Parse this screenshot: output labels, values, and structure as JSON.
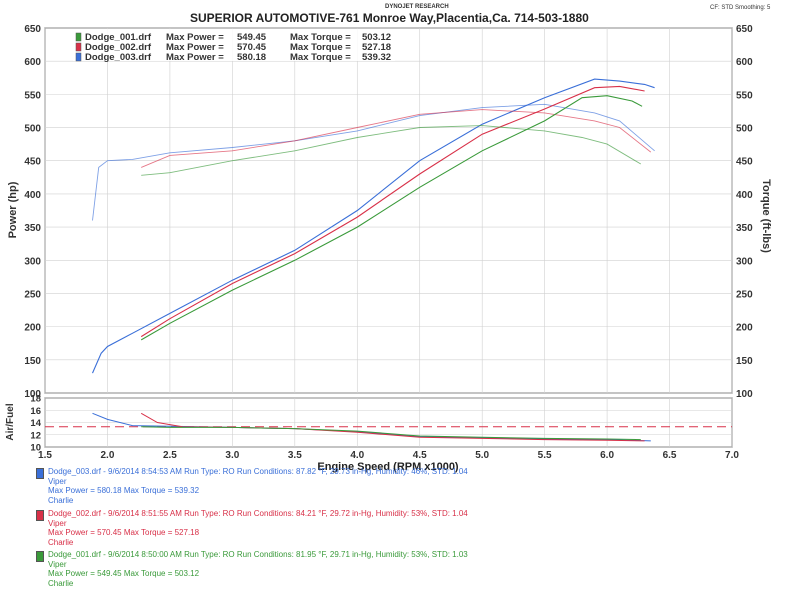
{
  "header": {
    "brand": "DYNOJET RESEARCH",
    "title": "SUPERIOR AUTOMOTIVE-761 Monroe Way,Placentia,Ca. 714-503-1880",
    "settings": "CF: STD  Smoothing: 5"
  },
  "legend": [
    {
      "file": "Dodge_001.drf",
      "power_label": "Max Power =",
      "power": "549.45",
      "torque_label": "Max Torque =",
      "torque": "503.12",
      "color": "#3a9a3a"
    },
    {
      "file": "Dodge_002.drf",
      "power_label": "Max Power =",
      "power": "570.45",
      "torque_label": "Max Torque =",
      "torque": "527.18",
      "color": "#d83048"
    },
    {
      "file": "Dodge_003.drf",
      "power_label": "Max Power =",
      "power": "580.18",
      "torque_label": "Max Torque =",
      "torque": "539.32",
      "color": "#3a6fd8"
    }
  ],
  "runs": [
    {
      "line1": "Dodge_003.drf - 9/6/2014 8:54:53 AM  Run Type: RO  Run Conditions: 87.82 °F, 29.73 in-Hg,  Humidity:  46%, STD: 1.04",
      "line2": "Viper",
      "line3": "Max Power = 580.18  Max Torque = 539.32",
      "line4": "Charlie",
      "color": "#3a6fd8"
    },
    {
      "line1": "Dodge_002.drf - 9/6/2014 8:51:55 AM  Run Type: RO  Run Conditions: 84.21 °F, 29.72 in-Hg,  Humidity:  53%, STD: 1.04",
      "line2": "Viper",
      "line3": "Max Power = 570.45  Max Torque = 527.18",
      "line4": "Charlie",
      "color": "#d83048"
    },
    {
      "line1": "Dodge_001.drf - 9/6/2014 8:50:00 AM  Run Type: RO  Run Conditions: 81.95 °F, 29.71 in-Hg,  Humidity:  53%, STD: 1.03",
      "line2": "Viper",
      "line3": "Max Power = 549.45  Max Torque = 503.12",
      "line4": "Charlie",
      "color": "#3a9a3a"
    }
  ],
  "chart_data": {
    "type": "line",
    "xlabel": "Engine Speed (RPM x1000)",
    "ylabel_left": "Power (hp)",
    "ylabel_right": "Torque (ft-lbs)",
    "ylabel_af": "Air/Fuel",
    "xlim": [
      1.5,
      7.0
    ],
    "xticks": [
      "1.5",
      "2.0",
      "2.5",
      "3.0",
      "3.5",
      "4.0",
      "4.5",
      "5.0",
      "5.5",
      "6.0",
      "6.5",
      "7.0"
    ],
    "power_ylim": [
      100,
      650
    ],
    "power_ticks": [
      "100",
      "150",
      "200",
      "250",
      "300",
      "350",
      "400",
      "450",
      "500",
      "550",
      "600",
      "650"
    ],
    "torque_ylim": [
      100,
      650
    ],
    "torque_ticks": [
      "100",
      "150",
      "200",
      "250",
      "300",
      "350",
      "400",
      "450",
      "500",
      "550",
      "600",
      "650"
    ],
    "af_ylim": [
      10,
      18
    ],
    "af_ticks": [
      "10",
      "12",
      "14",
      "16",
      "18"
    ],
    "af_reference": 13.3,
    "series": [
      {
        "name": "Dodge_003.drf",
        "color": "#3a6fd8",
        "power": [
          [
            1.88,
            130
          ],
          [
            1.95,
            160
          ],
          [
            2.0,
            170
          ],
          [
            2.2,
            190
          ],
          [
            2.5,
            220
          ],
          [
            3.0,
            270
          ],
          [
            3.5,
            315
          ],
          [
            4.0,
            375
          ],
          [
            4.5,
            450
          ],
          [
            5.0,
            505
          ],
          [
            5.5,
            545
          ],
          [
            5.9,
            573
          ],
          [
            6.1,
            570
          ],
          [
            6.3,
            565
          ],
          [
            6.38,
            560
          ]
        ],
        "torque": [
          [
            1.88,
            360
          ],
          [
            1.93,
            440
          ],
          [
            2.0,
            450
          ],
          [
            2.2,
            452
          ],
          [
            2.5,
            462
          ],
          [
            3.0,
            470
          ],
          [
            3.5,
            480
          ],
          [
            4.0,
            495
          ],
          [
            4.5,
            518
          ],
          [
            5.0,
            530
          ],
          [
            5.5,
            535
          ],
          [
            5.9,
            522
          ],
          [
            6.1,
            510
          ],
          [
            6.38,
            465
          ]
        ],
        "af": [
          [
            1.88,
            15.5
          ],
          [
            2.0,
            14.5
          ],
          [
            2.2,
            13.5
          ],
          [
            2.5,
            13.4
          ],
          [
            3.0,
            13.2
          ],
          [
            3.5,
            13.0
          ],
          [
            4.0,
            12.5
          ],
          [
            4.5,
            11.7
          ],
          [
            5.0,
            11.5
          ],
          [
            5.5,
            11.3
          ],
          [
            6.0,
            11.2
          ],
          [
            6.35,
            11.0
          ]
        ]
      },
      {
        "name": "Dodge_002.drf",
        "color": "#d83048",
        "power": [
          [
            2.27,
            185
          ],
          [
            2.5,
            212
          ],
          [
            3.0,
            265
          ],
          [
            3.5,
            310
          ],
          [
            4.0,
            365
          ],
          [
            4.5,
            430
          ],
          [
            5.0,
            490
          ],
          [
            5.5,
            528
          ],
          [
            5.9,
            560
          ],
          [
            6.1,
            562
          ],
          [
            6.3,
            555
          ]
        ],
        "torque": [
          [
            2.27,
            440
          ],
          [
            2.5,
            458
          ],
          [
            3.0,
            465
          ],
          [
            3.5,
            480
          ],
          [
            4.0,
            500
          ],
          [
            4.5,
            520
          ],
          [
            5.0,
            527
          ],
          [
            5.5,
            522
          ],
          [
            5.9,
            510
          ],
          [
            6.1,
            500
          ],
          [
            6.35,
            463
          ]
        ],
        "af": [
          [
            2.27,
            15.5
          ],
          [
            2.4,
            14.0
          ],
          [
            2.6,
            13.3
          ],
          [
            3.0,
            13.2
          ],
          [
            3.5,
            13.0
          ],
          [
            4.0,
            12.4
          ],
          [
            4.5,
            11.6
          ],
          [
            5.0,
            11.4
          ],
          [
            5.5,
            11.2
          ],
          [
            6.0,
            11.1
          ],
          [
            6.3,
            11.0
          ]
        ]
      },
      {
        "name": "Dodge_001.drf",
        "color": "#3a9a3a",
        "power": [
          [
            2.27,
            180
          ],
          [
            2.5,
            205
          ],
          [
            3.0,
            255
          ],
          [
            3.5,
            300
          ],
          [
            4.0,
            350
          ],
          [
            4.5,
            410
          ],
          [
            5.0,
            465
          ],
          [
            5.5,
            510
          ],
          [
            5.8,
            545
          ],
          [
            6.0,
            548
          ],
          [
            6.2,
            540
          ],
          [
            6.28,
            532
          ]
        ],
        "torque": [
          [
            2.27,
            428
          ],
          [
            2.5,
            432
          ],
          [
            3.0,
            450
          ],
          [
            3.5,
            465
          ],
          [
            4.0,
            485
          ],
          [
            4.5,
            500
          ],
          [
            5.0,
            503
          ],
          [
            5.5,
            495
          ],
          [
            5.8,
            485
          ],
          [
            6.0,
            475
          ],
          [
            6.27,
            445
          ]
        ],
        "af": [
          [
            2.27,
            13.3
          ],
          [
            2.5,
            13.2
          ],
          [
            3.0,
            13.2
          ],
          [
            3.5,
            13.0
          ],
          [
            4.0,
            12.6
          ],
          [
            4.5,
            11.8
          ],
          [
            5.0,
            11.6
          ],
          [
            5.5,
            11.4
          ],
          [
            6.0,
            11.3
          ],
          [
            6.27,
            11.2
          ]
        ]
      }
    ]
  }
}
